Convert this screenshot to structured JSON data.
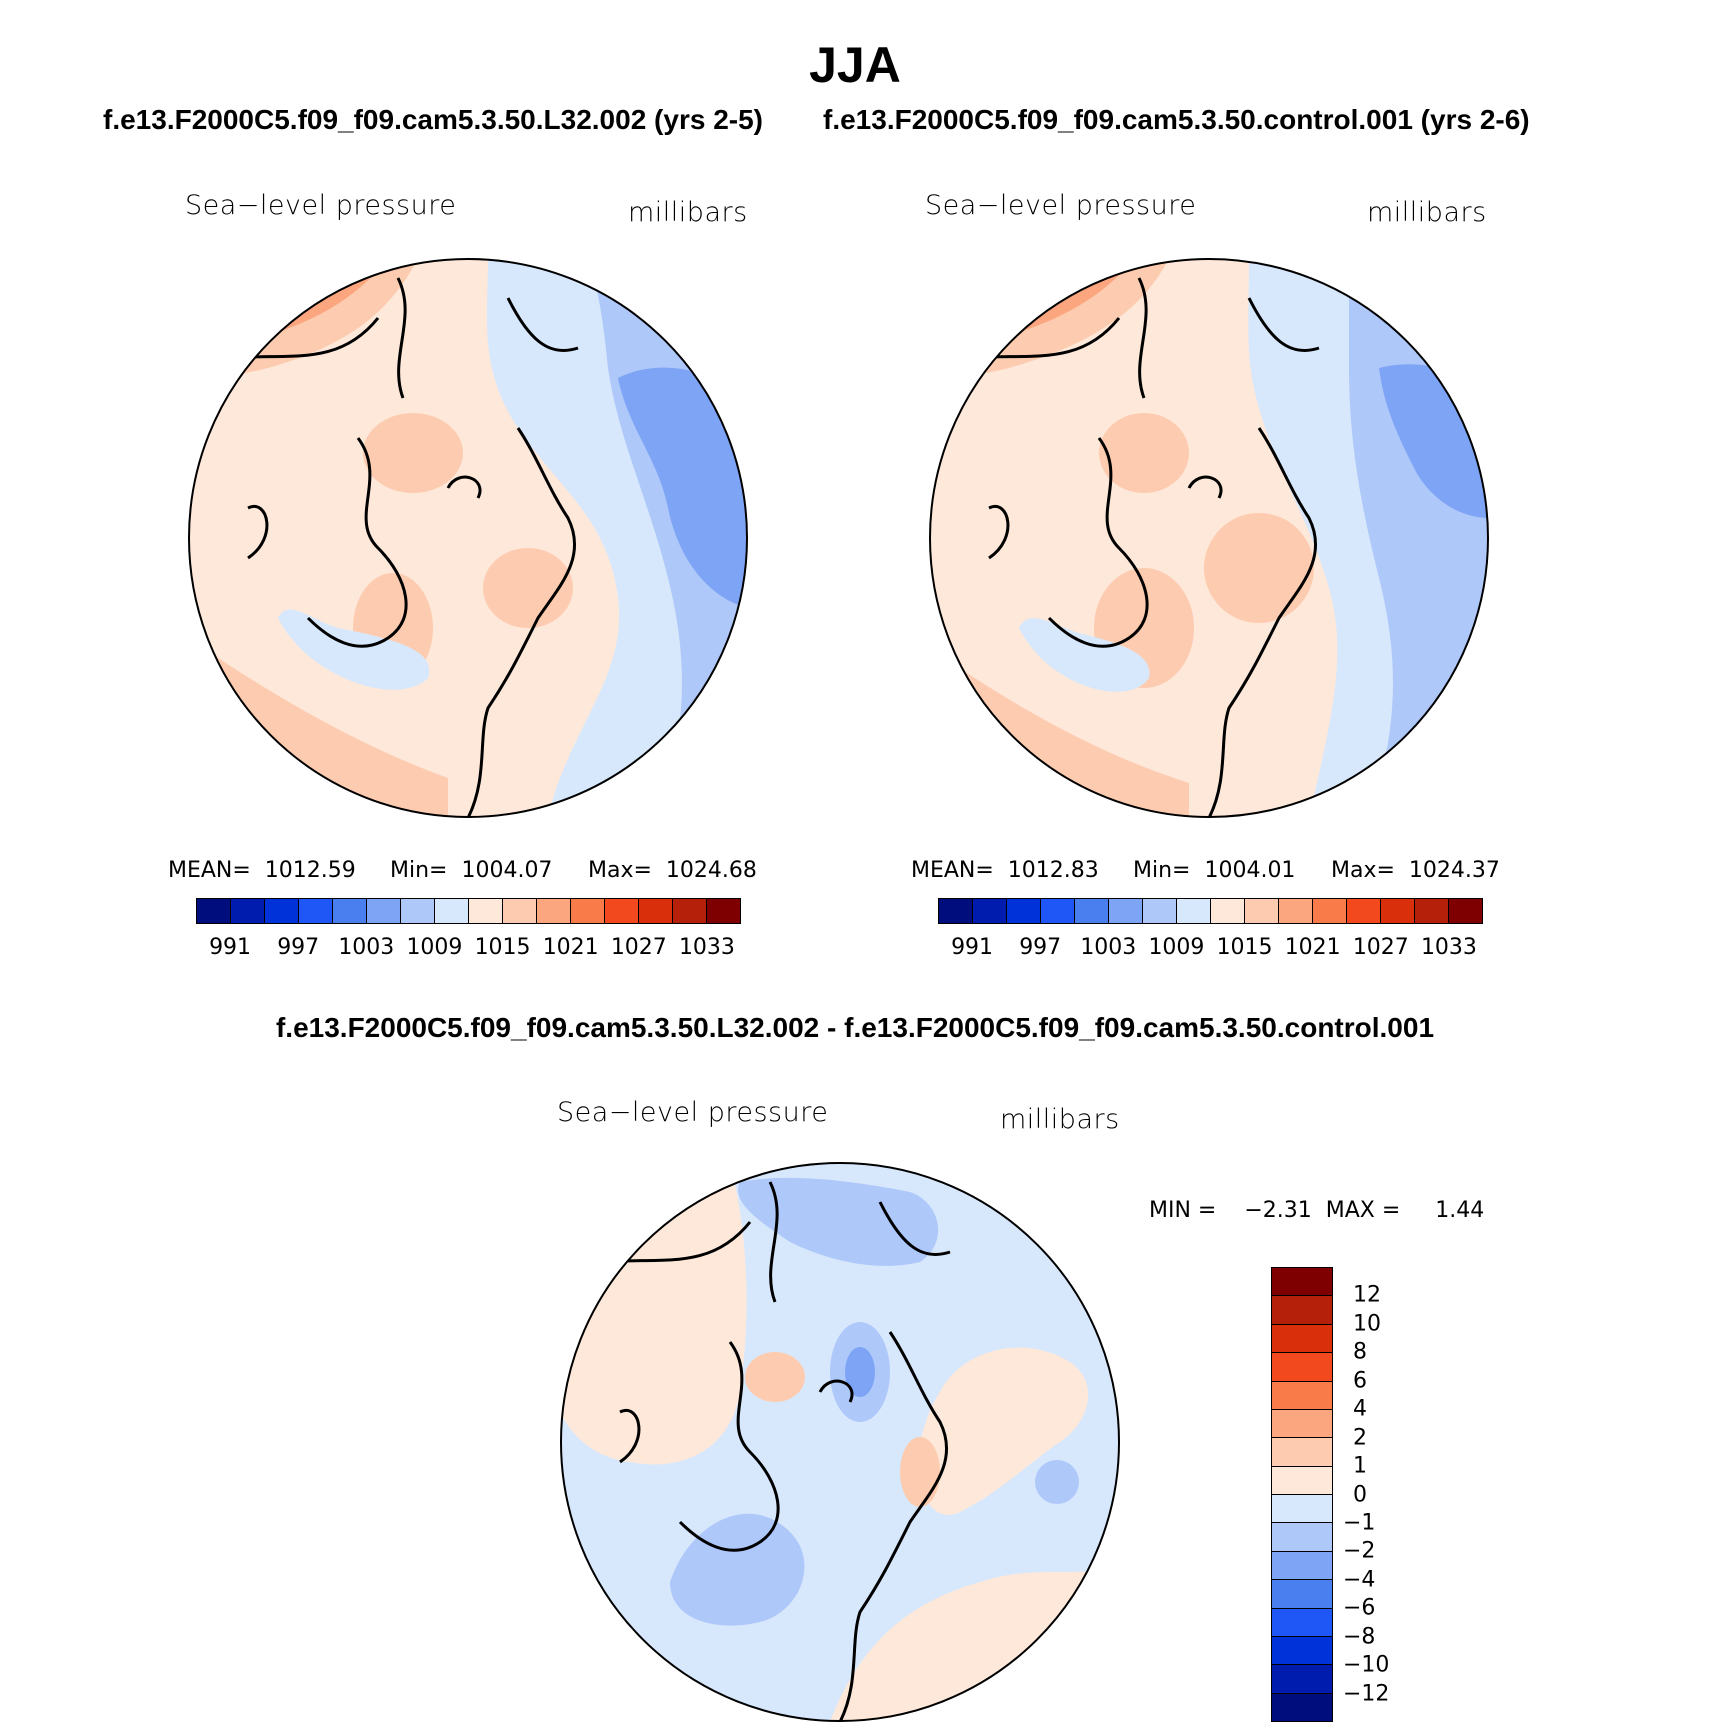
{
  "figure": {
    "title": "JJA",
    "diff_title": "f.e13.F2000C5.f09_f09.cam5.3.50.L32.002 - f.e13.F2000C5.f09_f09.cam5.3.50.control.001"
  },
  "colors": {
    "abs_scale": [
      "#000e7d",
      "#001cae",
      "#0032d9",
      "#1e57f5",
      "#4a7ff0",
      "#7ea4f5",
      "#afc8fa",
      "#d8e8fc",
      "#fde8da",
      "#fdccb0",
      "#fca67f",
      "#f97b4a",
      "#f24a1e",
      "#d92f0a",
      "#b5200a",
      "#7e0000"
    ],
    "diff_scale": [
      "#7e0000",
      "#b5200a",
      "#d92f0a",
      "#f24a1e",
      "#f97b4a",
      "#fca67f",
      "#fdccb0",
      "#fde8da",
      "#d8e8fc",
      "#afc8fa",
      "#7ea4f5",
      "#4a7ff0",
      "#1e57f5",
      "#0032d9",
      "#001cae",
      "#000e7d"
    ]
  },
  "panels": [
    {
      "case_title": "f.e13.F2000C5.f09_f09.cam5.3.50.L32.002 (yrs 2-5)",
      "variable": "Sea−level pressure",
      "units": "millibars",
      "mean_label": "MEAN=  1012.59",
      "min_label": "Min=  1004.07",
      "max_label": "Max=  1024.68"
    },
    {
      "case_title": "f.e13.F2000C5.f09_f09.cam5.3.50.control.001 (yrs 2-6)",
      "variable": "Sea−level pressure",
      "units": "millibars",
      "mean_label": "MEAN=  1012.83",
      "min_label": "Min=  1004.01",
      "max_label": "Max=  1024.37"
    },
    {
      "variable": "Sea−level pressure",
      "units": "millibars",
      "minmax_label": "MIN =    −2.31  MAX =     1.44"
    }
  ],
  "colorbar_abs_ticks": [
    "991",
    "997",
    "1003",
    "1009",
    "1015",
    "1021",
    "1027",
    "1033"
  ],
  "colorbar_diff_ticks": [
    "12",
    "10",
    "8",
    "6",
    "4",
    "2",
    "1",
    "0",
    "−1",
    "−2",
    "−4",
    "−6",
    "−8",
    "−10",
    "−12"
  ],
  "chart_data": [
    {
      "type": "heatmap",
      "projection": "north polar stereographic",
      "title": "f.e13.F2000C5.f09_f09.cam5.3.50.L32.002 (yrs 2-5)",
      "variable": "Sea-level pressure",
      "units": "millibars",
      "mean": 1012.59,
      "min": 1004.07,
      "max": 1024.68,
      "contour_levels": [
        988,
        991,
        994,
        997,
        1000,
        1003,
        1006,
        1009,
        1012,
        1015,
        1018,
        1021,
        1024,
        1027,
        1030,
        1033,
        1036
      ]
    },
    {
      "type": "heatmap",
      "projection": "north polar stereographic",
      "title": "f.e13.F2000C5.f09_f09.cam5.3.50.control.001 (yrs 2-6)",
      "variable": "Sea-level pressure",
      "units": "millibars",
      "mean": 1012.83,
      "min": 1004.01,
      "max": 1024.37,
      "contour_levels": [
        988,
        991,
        994,
        997,
        1000,
        1003,
        1006,
        1009,
        1012,
        1015,
        1018,
        1021,
        1024,
        1027,
        1030,
        1033,
        1036
      ]
    },
    {
      "type": "heatmap",
      "projection": "north polar stereographic",
      "title": "f.e13.F2000C5.f09_f09.cam5.3.50.L32.002 - f.e13.F2000C5.f09_f09.cam5.3.50.control.001",
      "variable": "Sea-level pressure",
      "units": "millibars",
      "min": -2.31,
      "max": 1.44,
      "contour_levels": [
        -12,
        -10,
        -8,
        -6,
        -4,
        -2,
        -1,
        0,
        1,
        2,
        4,
        6,
        8,
        10,
        12
      ]
    }
  ]
}
